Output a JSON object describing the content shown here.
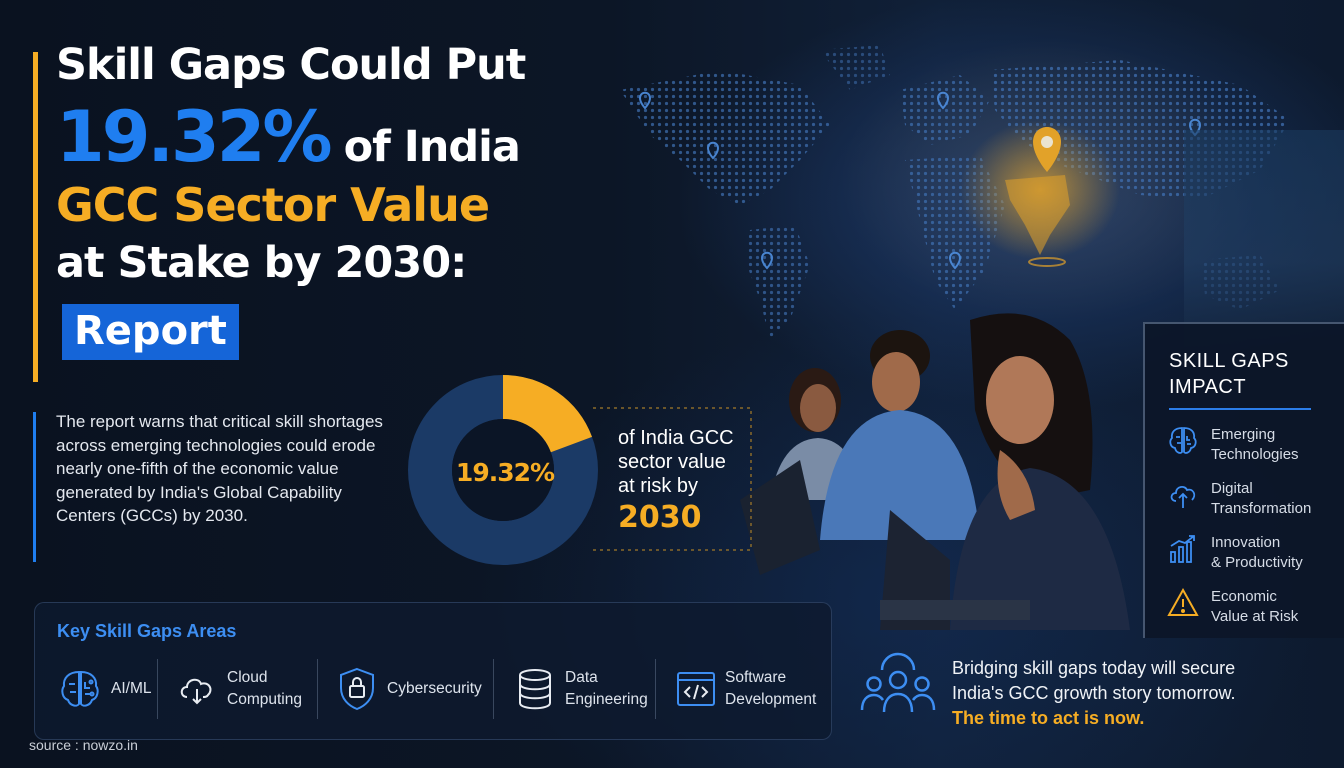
{
  "headline": {
    "line1": "Skill Gaps Could Put",
    "percent": "19.32%",
    "line2_rest": "of India",
    "line3": "GCC Sector Value",
    "line4": "at Stake by 2030:",
    "badge": "Report"
  },
  "description": "The report warns that critical skill shortages across emerging technologies could erode nearly one-fifth of the economic value generated by India's Global Capability Centers (GCCs) by 2030.",
  "donut": {
    "value": 19.32,
    "label": "19.32%",
    "text": "of India GCC sector value at risk by",
    "year": "2030",
    "colors": {
      "highlight": "#f6ad24",
      "base": "#1b3a66"
    }
  },
  "skills": {
    "title": "Key Skill Gaps Areas",
    "items": [
      {
        "label": "AI/ML",
        "icon": "brain-circuit-icon"
      },
      {
        "label": "Cloud\nComputing",
        "icon": "cloud-icon"
      },
      {
        "label": "Cybersecurity",
        "icon": "shield-lock-icon"
      },
      {
        "label": "Data\nEngineering",
        "icon": "database-icon"
      },
      {
        "label": "Software\nDevelopment",
        "icon": "code-window-icon"
      }
    ]
  },
  "source": "source : nowzo.in",
  "impact": {
    "title": "SKILL GAPS\nIMPACT",
    "items": [
      {
        "label": "Emerging\nTechnologies",
        "icon": "brain-icon"
      },
      {
        "label": "Digital\nTransformation",
        "icon": "cloud-upload-icon"
      },
      {
        "label": "Innovation\n& Productivity",
        "icon": "bar-chart-icon"
      },
      {
        "label": "Economic\nValue at Risk",
        "icon": "warning-icon"
      }
    ]
  },
  "closing": {
    "line1": "Bridging skill gaps today will secure",
    "line2": "India's GCC growth story tomorrow.",
    "cta": "The time to act is now."
  },
  "colors": {
    "accent": "#f6ad24",
    "blue": "#1f7ef0",
    "badge": "#1565d8"
  }
}
